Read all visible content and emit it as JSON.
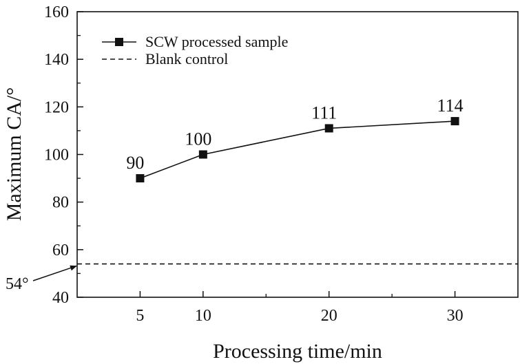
{
  "chart_data": {
    "type": "line",
    "xlabel": "Processing time/min",
    "ylabel": "Maximum CA/°",
    "xlim": [
      0,
      35
    ],
    "ylim": [
      40,
      160
    ],
    "x_ticks": [
      5,
      10,
      20,
      30
    ],
    "y_ticks": [
      40,
      60,
      80,
      100,
      120,
      140,
      160
    ],
    "grid": false,
    "legend_position": "top-left",
    "series": [
      {
        "name": "SCW processed sample",
        "style": "solid line with square markers",
        "color": "#111111",
        "x": [
          5,
          10,
          20,
          30
        ],
        "values": [
          90,
          100,
          111,
          114
        ],
        "data_labels": [
          "90",
          "100",
          "111",
          "114"
        ]
      },
      {
        "name": "Blank control",
        "style": "dashed horizontal line",
        "color": "#111111",
        "value": 54
      }
    ],
    "annotations": [
      {
        "text": "54°",
        "points_to_value": 54
      }
    ]
  }
}
